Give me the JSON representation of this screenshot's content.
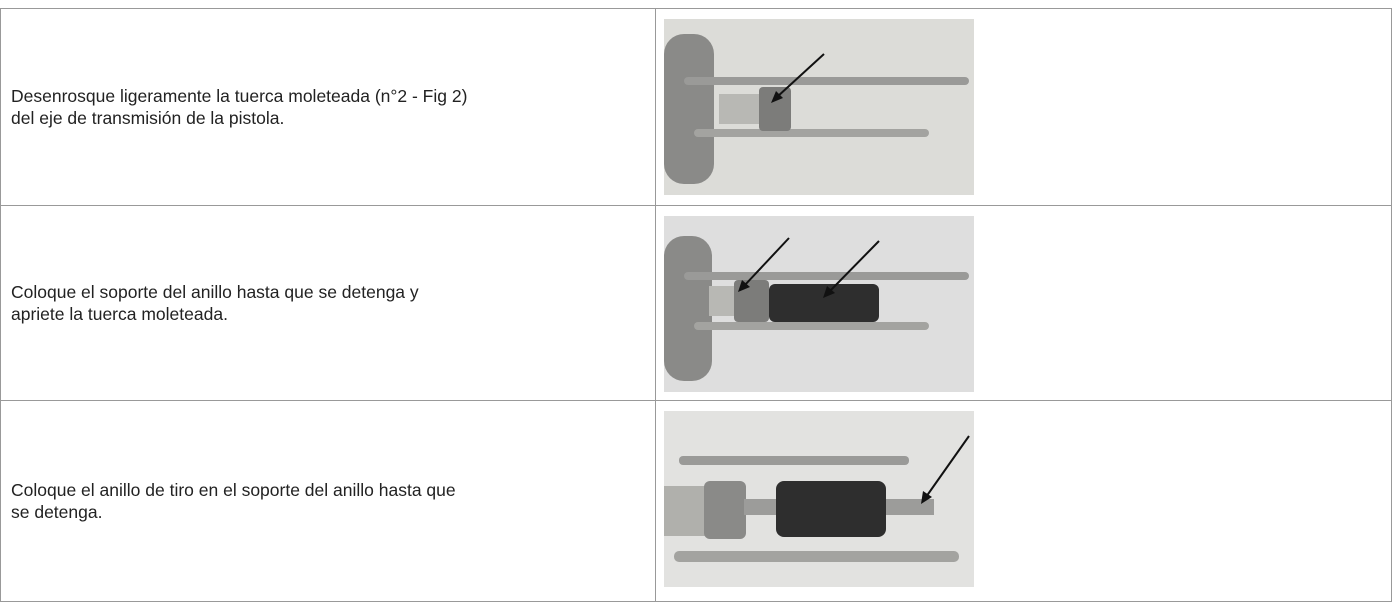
{
  "table": {
    "rows": [
      {
        "lines": [
          "Desenrosque ligeramente la tuerca moleteada (n°2 - Fig 2)",
          "del eje de transmisión de la pistola."
        ]
      },
      {
        "lines": [
          "Coloque el soporte del anillo hasta que se detenga y",
          "apriete la tuerca moleteada."
        ]
      },
      {
        "lines": [
          "Coloque el anillo de tiro en el soporte del anillo hasta que",
          "se detenga."
        ]
      }
    ]
  }
}
